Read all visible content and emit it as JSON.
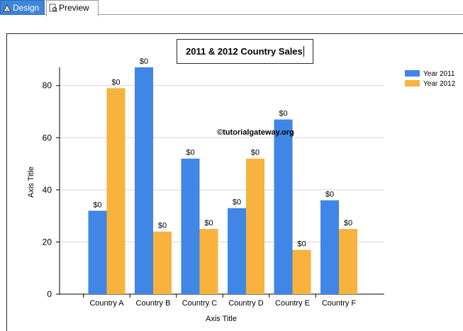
{
  "tabs": [
    {
      "label": "Design",
      "icon": "design-icon",
      "active": false
    },
    {
      "label": "Preview",
      "icon": "preview-icon",
      "active": true
    }
  ],
  "watermark": "©tutorialgateway.org",
  "colors": {
    "series_2011": "#3f86e6",
    "series_2012": "#f7b33d"
  },
  "chart_data": {
    "type": "bar",
    "title": "2011 & 2012 Country Sales",
    "xlabel": "Axis Title",
    "ylabel": "Axis Title",
    "categories": [
      "Country A",
      "Country B",
      "Country C",
      "Country D",
      "Country E",
      "Country F"
    ],
    "series": [
      {
        "name": "Year 2011",
        "values": [
          32,
          87,
          52,
          33,
          67,
          36
        ]
      },
      {
        "name": "Year 2012",
        "values": [
          79,
          24,
          25,
          52,
          17,
          25
        ]
      }
    ],
    "data_label": "$0",
    "yticks": [
      "0",
      "20",
      "40",
      "60",
      "80"
    ],
    "ylim": [
      0,
      87
    ],
    "grid": true,
    "legend_position": "top-right"
  }
}
